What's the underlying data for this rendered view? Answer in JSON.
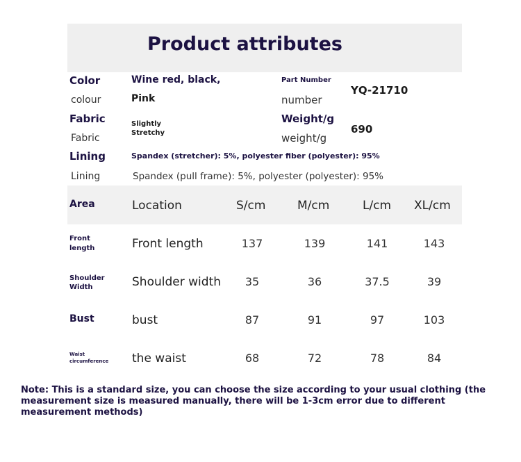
{
  "title": "Product attributes",
  "attributes": {
    "color_en": "Color",
    "color_value_1": "Wine red, black,",
    "color_value_2": "Pink",
    "colour_cn": "colour",
    "part_number_label": "Part Number",
    "number_label": "number",
    "part_number_value": "YQ-21710",
    "fabric_en": "Fabric",
    "fabric_cn": "Fabric",
    "fabric_value_1": "Slightly",
    "fabric_value_2": "Stretchy",
    "weight_label_1": "Weight/g",
    "weight_label_2": "weight/g",
    "weight_value": "690",
    "lining_en": "Lining",
    "lining_cn": "Lining",
    "lining_value_1": "Spandex (stretcher): 5%, polyester fiber (polyester): 95%",
    "lining_value_2": "Spandex (pull frame): 5%, polyester (polyester): 95%"
  },
  "size_table": {
    "headers": [
      "Area",
      "Location",
      "S/cm",
      "M/cm",
      "L/cm",
      "XL/cm"
    ],
    "rows": [
      {
        "area_1": "Front",
        "area_2": "length",
        "location": "Front length",
        "values": [
          "137",
          "139",
          "141",
          "143"
        ]
      },
      {
        "area_1": "Shoulder",
        "area_2": "Width",
        "location": "Shoulder width",
        "values": [
          "35",
          "36",
          "37.5",
          "39"
        ]
      },
      {
        "area_1": "Bust",
        "area_2": "",
        "location": "bust",
        "values": [
          "87",
          "91",
          "97",
          "103"
        ]
      },
      {
        "area_1": "Waist",
        "area_2": "circumference",
        "location": "the waist",
        "values": [
          "68",
          "72",
          "78",
          "84"
        ]
      }
    ]
  },
  "note": "Note: This is a standard size, you can choose the size according to your usual clothing (the measurement size is measured manually, there will be 1-3cm error due to different measurement methods)"
}
